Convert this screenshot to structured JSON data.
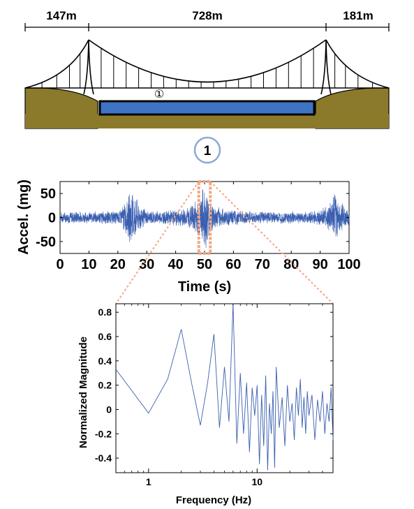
{
  "bridge": {
    "spans": [
      "147m",
      "728m",
      "181m"
    ],
    "sensor_marker": "①",
    "colors": {
      "ground": "#8b7a2b",
      "water": "#3f74c4",
      "cable": "#000000"
    }
  },
  "sensor_badge": {
    "label": "1",
    "color": "#8ea8d6"
  },
  "chart_data": [
    {
      "type": "line",
      "title": "",
      "xlabel": "Time (s)",
      "ylabel": "Accel. (mg)",
      "xlim": [
        0,
        100
      ],
      "ylim": [
        -75,
        75
      ],
      "x_ticks": [
        "0",
        "10",
        "20",
        "30",
        "40",
        "50",
        "60",
        "70",
        "80",
        "90",
        "100"
      ],
      "y_ticks": [
        "-50",
        "0",
        "50"
      ],
      "series": [
        {
          "color": "#3a5fb0",
          "envelope": {
            "t": [
              0,
              5,
              10,
              15,
              20,
              23,
              25,
              27,
              30,
              35,
              40,
              44,
              46,
              48,
              50,
              52,
              54,
              58,
              62,
              66,
              70,
              75,
              80,
              85,
              90,
              93,
              95,
              97,
              100
            ],
            "amp": [
              12,
              15,
              12,
              16,
              14,
              40,
              70,
              35,
              16,
              15,
              18,
              22,
              35,
              45,
              78,
              40,
              24,
              18,
              16,
              14,
              14,
              13,
              14,
              13,
              18,
              30,
              60,
              35,
              15
            ]
          }
        }
      ],
      "highlight_window": [
        48,
        52
      ],
      "highlight_color": "#f4a582"
    },
    {
      "type": "line",
      "title": "",
      "xlabel": "Frequency (Hz)",
      "ylabel": "Normalized Magnitude",
      "xscale": "log",
      "xlim": [
        0.5,
        50
      ],
      "ylim": [
        -0.52,
        0.87
      ],
      "x_ticks": [
        "1",
        "10"
      ],
      "y_ticks": [
        "0.8",
        "0.6",
        "0.4",
        "0.2",
        "0",
        "-0.2",
        "-0.4"
      ],
      "series": [
        {
          "color": "#3a5fb0",
          "x": [
            0.5,
            1.0,
            1.5,
            2.0,
            2.5,
            3.0,
            3.5,
            4.0,
            4.5,
            5.0,
            5.5,
            6.0,
            6.5,
            7.0,
            7.5,
            8.0,
            8.5,
            9.0,
            9.5,
            10,
            10.5,
            11,
            11.5,
            12,
            12.5,
            13,
            13.5,
            14,
            14.5,
            15,
            16,
            17,
            18,
            19,
            20,
            21,
            22,
            23,
            24,
            25,
            26,
            27,
            28,
            29,
            30,
            32,
            34,
            36,
            38,
            40,
            42,
            44,
            46,
            48,
            50
          ],
          "y": [
            0.33,
            -0.03,
            0.25,
            0.66,
            0.21,
            -0.13,
            0.22,
            0.62,
            -0.15,
            0.35,
            -0.1,
            0.87,
            -0.28,
            0.3,
            -0.2,
            0.22,
            -0.35,
            0.18,
            -0.05,
            0.2,
            -0.45,
            0.12,
            -0.3,
            0.28,
            -0.5,
            0.05,
            -0.2,
            0.15,
            -0.48,
            0.35,
            -0.15,
            0.1,
            -0.3,
            0.2,
            -0.1,
            0.05,
            -0.25,
            0.18,
            -0.05,
            0.25,
            -0.15,
            0.1,
            -0.2,
            0.15,
            -0.05,
            0.12,
            -0.25,
            0.08,
            -0.1,
            0.15,
            -0.2,
            0.05,
            -0.1,
            0.18,
            -0.25
          ]
        }
      ],
      "connector_color": "#f4a582"
    }
  ]
}
